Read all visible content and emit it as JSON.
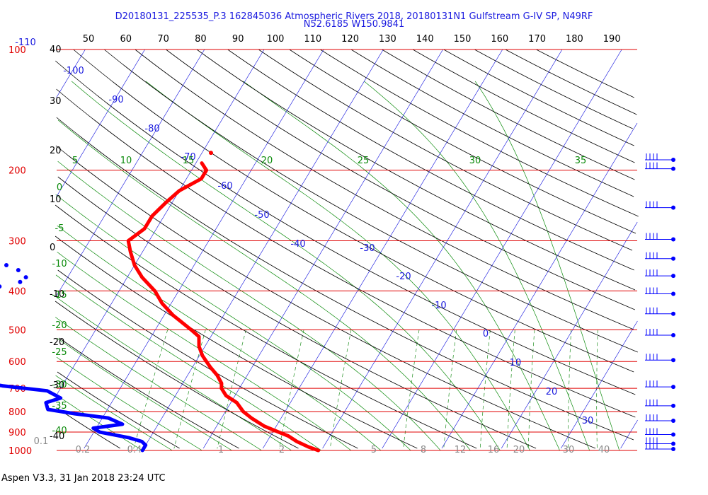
{
  "header": {
    "title_line1": "D20180131_225535_P.3 162845036 Atmospheric Rivers 2018, 20180131N1 Gulfstream G-IV SP, N49RF",
    "title_line2": "N52.6185 W150.9841"
  },
  "footer": {
    "text": "Aspen V3.3, 31 Jan 2018  23:24 UTC"
  },
  "colors": {
    "isobar": "#e00000",
    "isotherm": "#1a1adf",
    "dry_adiabat": "#000000",
    "moist_adiabat": "#0a8a0a",
    "mixing_ratio": "#1f8f1f",
    "temperature_trace": "#ff0000",
    "dewpoint_trace": "#0000ff"
  },
  "chart_data": {
    "type": "skew-t",
    "pressure_levels_hPa": [
      "100",
      "200",
      "300",
      "400",
      "500",
      "600",
      "700",
      "800",
      "900",
      "1000"
    ],
    "height_scale_labels": [
      "40",
      "30",
      "20",
      "10",
      "0",
      "-10",
      "-20",
      "-30",
      "-40"
    ],
    "top_temperature_scale_labels": [
      "50",
      "60",
      "70",
      "80",
      "90",
      "100",
      "110",
      "120",
      "130",
      "140",
      "150",
      "160",
      "170",
      "180",
      "190"
    ],
    "isotherm_labels": [
      "-110",
      "-100",
      "-90",
      "-80",
      "-70",
      "-60",
      "-50",
      "-40",
      "-30",
      "-20",
      "-10",
      "0",
      "10",
      "20",
      "30"
    ],
    "moist_adiabat_labels": [
      "5",
      "10",
      "15",
      "20",
      "25",
      "30",
      "35"
    ],
    "moist_left_labels": [
      "0",
      "-5",
      "-10",
      "-15",
      "-20",
      "-25",
      "-30",
      "-35",
      "-40"
    ],
    "mixing_ratio_labels": [
      "0.1",
      "0.2",
      "0.4",
      "1",
      "2",
      "5",
      "8",
      "12",
      "16",
      "20",
      "30",
      "40"
    ],
    "temperature_profile": [
      {
        "p": 1000,
        "t": -10.5
      },
      {
        "p": 980,
        "t": -12.5
      },
      {
        "p": 950,
        "t": -15
      },
      {
        "p": 920,
        "t": -17
      },
      {
        "p": 900,
        "t": -19
      },
      {
        "p": 870,
        "t": -22
      },
      {
        "p": 830,
        "t": -25
      },
      {
        "p": 800,
        "t": -27
      },
      {
        "p": 760,
        "t": -29
      },
      {
        "p": 730,
        "t": -31.5
      },
      {
        "p": 700,
        "t": -33
      },
      {
        "p": 680,
        "t": -33.5
      },
      {
        "p": 650,
        "t": -35
      },
      {
        "p": 620,
        "t": -37
      },
      {
        "p": 580,
        "t": -39.5
      },
      {
        "p": 550,
        "t": -41
      },
      {
        "p": 520,
        "t": -42
      },
      {
        "p": 500,
        "t": -44
      },
      {
        "p": 460,
        "t": -48.5
      },
      {
        "p": 430,
        "t": -51.5
      },
      {
        "p": 400,
        "t": -54
      },
      {
        "p": 370,
        "t": -57.5
      },
      {
        "p": 345,
        "t": -60
      },
      {
        "p": 320,
        "t": -62
      },
      {
        "p": 300,
        "t": -63.5
      },
      {
        "p": 280,
        "t": -62
      },
      {
        "p": 260,
        "t": -62
      },
      {
        "p": 240,
        "t": -61
      },
      {
        "p": 225,
        "t": -60
      },
      {
        "p": 210,
        "t": -57.5
      },
      {
        "p": 200,
        "t": -57.5
      },
      {
        "p": 192,
        "t": -59
      }
    ],
    "temperature_isolated_point": {
      "p": 181,
      "t": -58.5
    },
    "dewpoint_profile": [
      {
        "p": 1000,
        "t": -40
      },
      {
        "p": 970,
        "t": -40
      },
      {
        "p": 950,
        "t": -41
      },
      {
        "p": 930,
        "t": -43.5
      },
      {
        "p": 900,
        "t": -49
      },
      {
        "p": 880,
        "t": -50.5
      },
      {
        "p": 860,
        "t": -46
      },
      {
        "p": 830,
        "t": -49
      },
      {
        "p": 810,
        "t": -55
      },
      {
        "p": 790,
        "t": -60
      },
      {
        "p": 760,
        "t": -61
      },
      {
        "p": 740,
        "t": -59
      },
      {
        "p": 710,
        "t": -62
      },
      {
        "p": 690,
        "t": -70
      },
      {
        "p": 660,
        "t": -78
      },
      {
        "p": 640,
        "t": -82
      },
      {
        "p": 600,
        "t": -83.5
      },
      {
        "p": 580,
        "t": -85
      }
    ],
    "dewpoint_upper": [
      {
        "p": 470,
        "t": -81
      },
      {
        "p": 455,
        "t": -81
      },
      {
        "p": 440,
        "t": -82.5
      },
      {
        "p": 430,
        "t": -84
      },
      {
        "p": 420,
        "t": -86
      },
      {
        "p": 410,
        "t": -87.5
      },
      {
        "p": 400,
        "t": -89
      }
    ],
    "dewpoint_top": [
      {
        "p": 390,
        "t": -80.5
      },
      {
        "p": 380,
        "t": -77.5
      },
      {
        "p": 370,
        "t": -77
      },
      {
        "p": 355,
        "t": -79
      },
      {
        "p": 345,
        "t": -81.5
      },
      {
        "p": 335,
        "t": -84
      },
      {
        "p": 325,
        "t": -86.5
      },
      {
        "p": 320,
        "t": -89
      }
    ],
    "wind_barbs": [
      "190",
      "200",
      "250",
      "300",
      "335",
      "370",
      "410",
      "460",
      "520",
      "600",
      "700",
      "780",
      "850",
      "920",
      "970",
      "1000"
    ]
  }
}
